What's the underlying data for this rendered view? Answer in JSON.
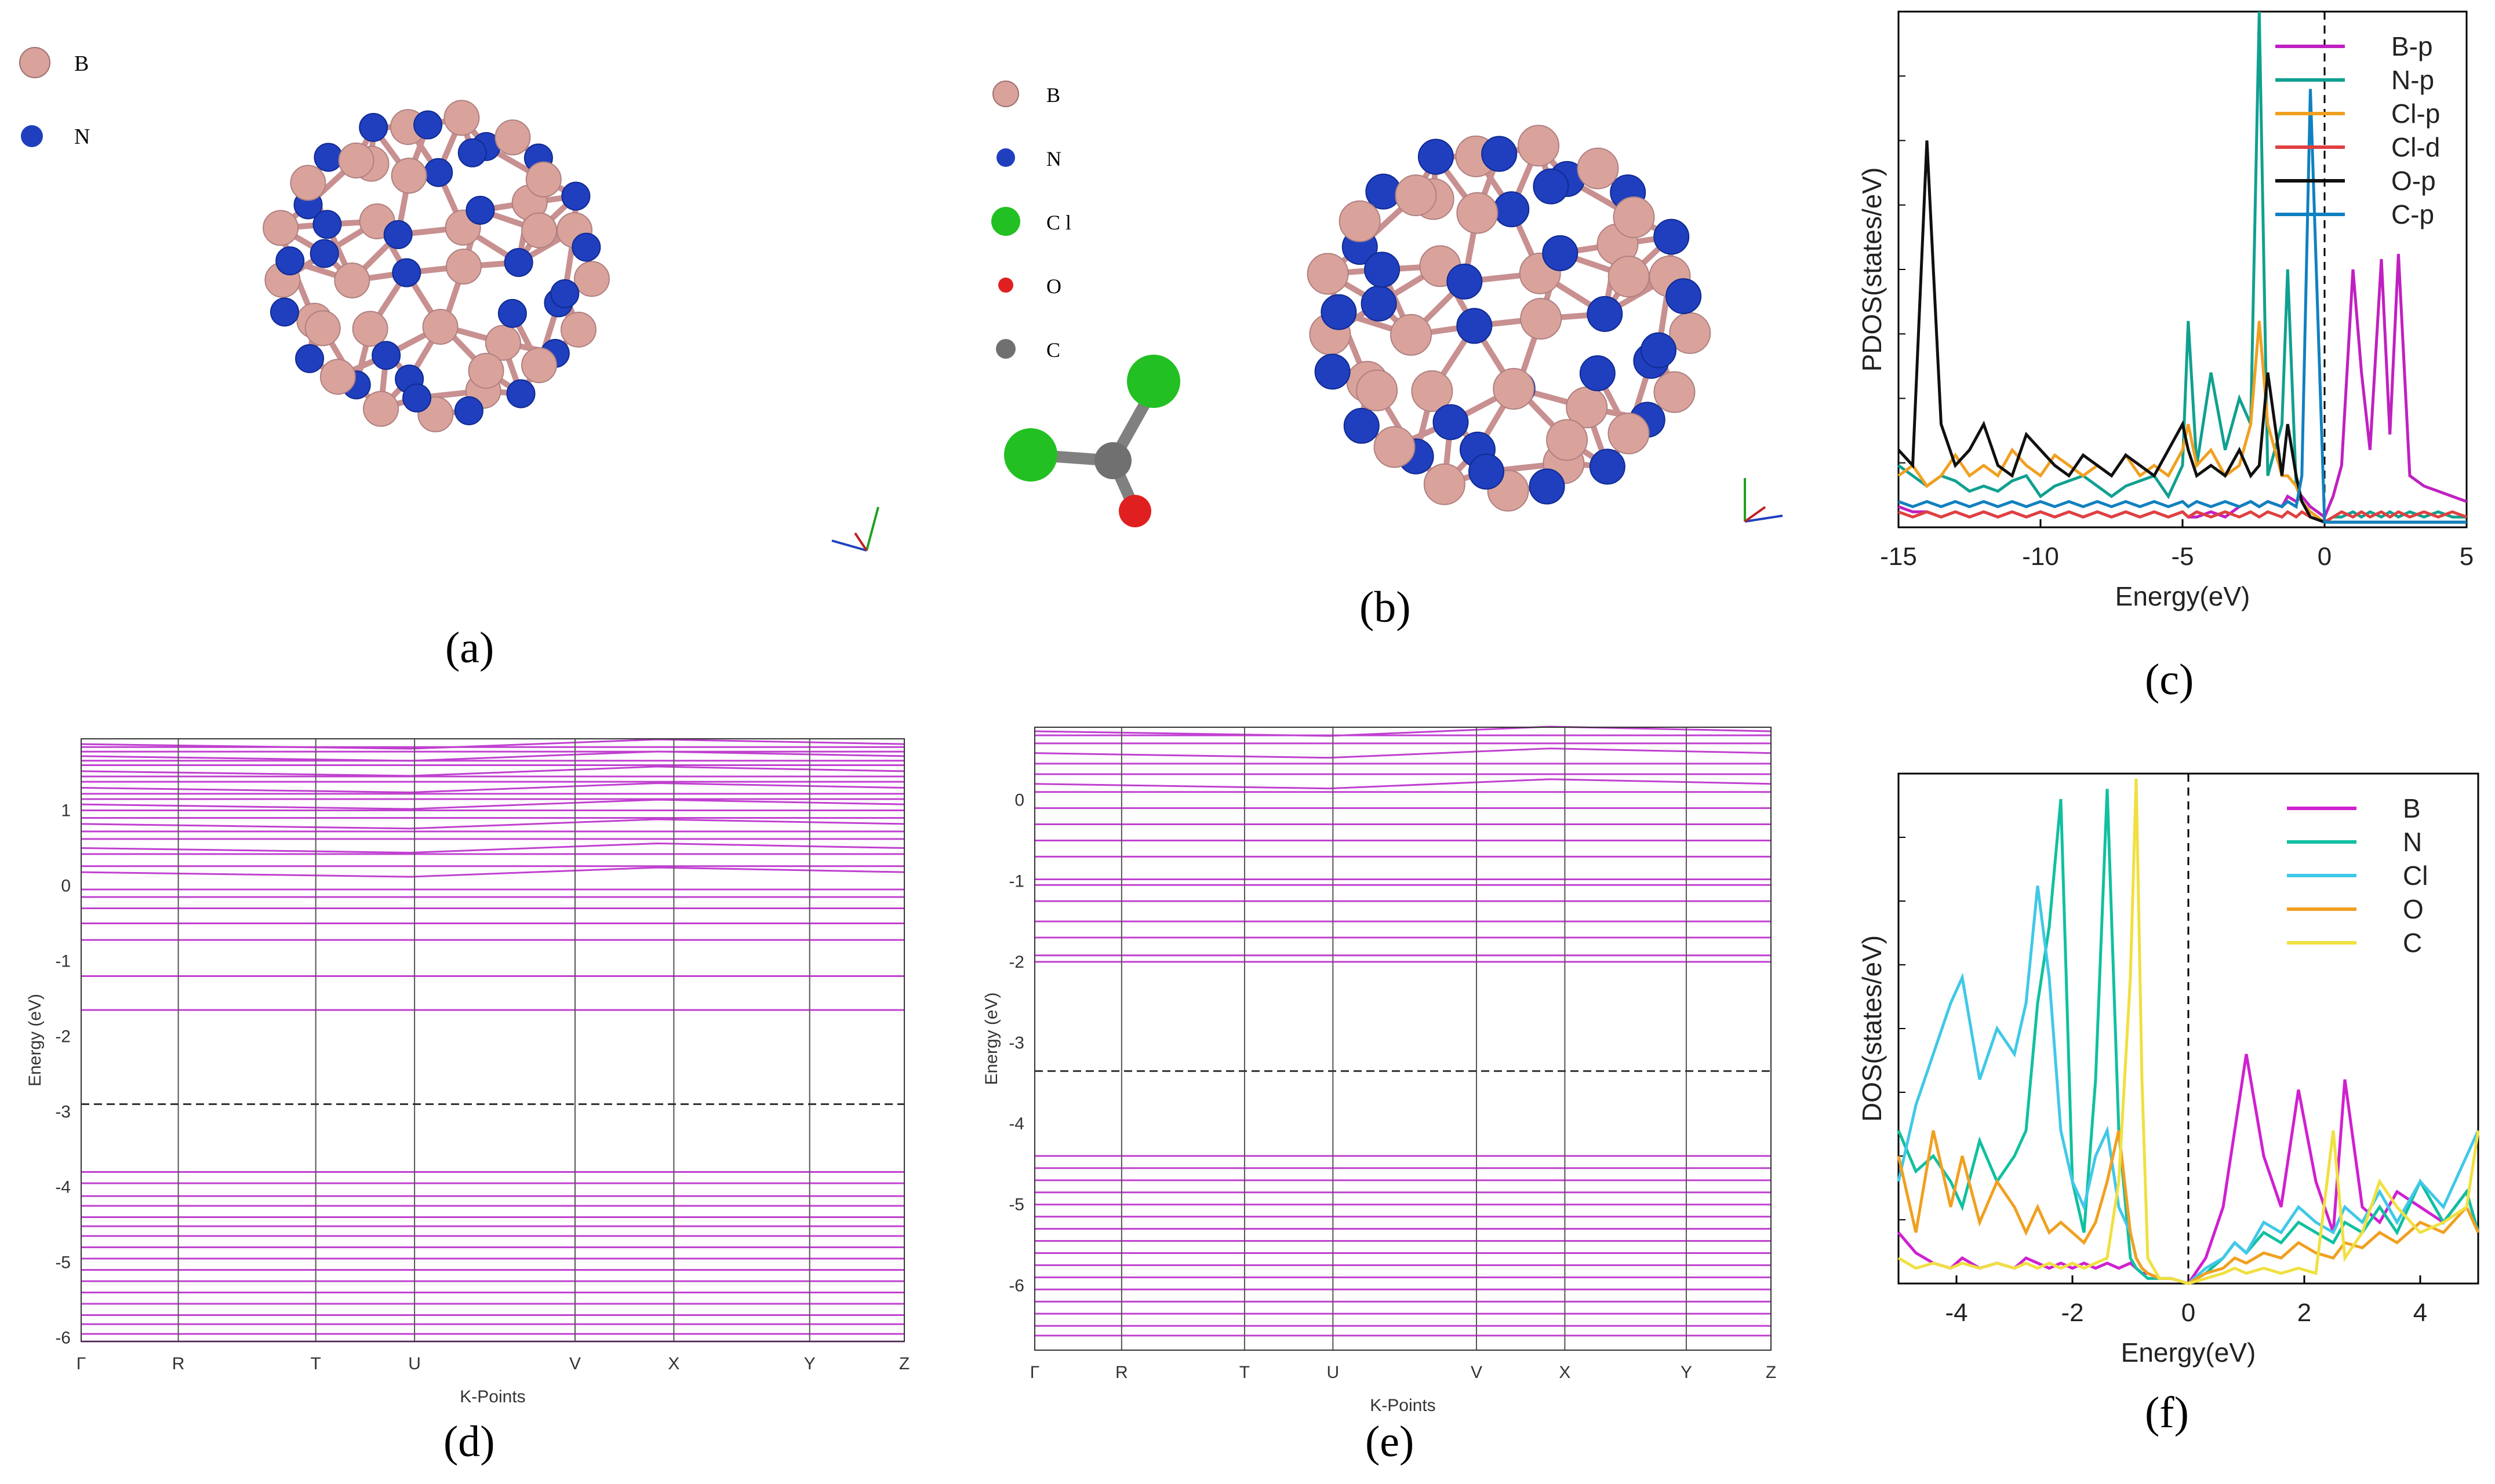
{
  "figure": {
    "captions": {
      "a": "(a)",
      "b": "(b)",
      "c": "(c)",
      "d": "(d)",
      "e": "(e)",
      "f": "(f)"
    }
  },
  "panel_a": {
    "legend": [
      {
        "label": "B",
        "color": "#d9a39c"
      },
      {
        "label": "N",
        "color": "#1f3fbf"
      }
    ]
  },
  "panel_b": {
    "legend": [
      {
        "label": "B",
        "color": "#d9a39c"
      },
      {
        "label": "N",
        "color": "#1f3fbf"
      },
      {
        "label": "C l",
        "color": "#22c022"
      },
      {
        "label": "O",
        "color": "#e02020"
      },
      {
        "label": "C",
        "color": "#707070"
      }
    ]
  },
  "chart_data": [
    {
      "panel": "c",
      "type": "line",
      "xlabel": "Energy(eV)",
      "ylabel": "PDOS(states/eV)",
      "xlim": [
        -15,
        5
      ],
      "ylim": [
        0,
        1
      ],
      "xticks": [
        "-15",
        "-10",
        "-5",
        "0",
        "5"
      ],
      "fermi_line": 0,
      "legend_position": "top-right",
      "x": [
        -15,
        -14.5,
        -14,
        -13.5,
        -13,
        -12.5,
        -12,
        -11.5,
        -11,
        -10.5,
        -10,
        -9.5,
        -9,
        -8.5,
        -8,
        -7.5,
        -7,
        -6.5,
        -6,
        -5.5,
        -5,
        -4.8,
        -4.5,
        -4,
        -3.5,
        -3,
        -2.6,
        -2.3,
        -2,
        -1.5,
        -1.3,
        -1,
        -0.8,
        -0.5,
        0,
        0.3,
        0.6,
        1,
        1.3,
        1.6,
        2,
        2.3,
        2.6,
        3,
        3.5,
        4,
        4.5,
        5
      ],
      "series": [
        {
          "name": "B-p",
          "color": "#c020c0",
          "values": [
            0.04,
            0.03,
            0.03,
            0.02,
            0.03,
            0.02,
            0.03,
            0.02,
            0.03,
            0.02,
            0.03,
            0.02,
            0.03,
            0.02,
            0.03,
            0.02,
            0.03,
            0.02,
            0.03,
            0.02,
            0.03,
            0.02,
            0.02,
            0.03,
            0.02,
            0.04,
            0.05,
            0.04,
            0.05,
            0.04,
            0.06,
            0.05,
            0.06,
            0.04,
            0.02,
            0.06,
            0.12,
            0.5,
            0.3,
            0.15,
            0.52,
            0.18,
            0.53,
            0.1,
            0.08,
            0.07,
            0.06,
            0.05
          ]
        },
        {
          "name": "N-p",
          "color": "#10a090",
          "values": [
            0.12,
            0.1,
            0.08,
            0.1,
            0.09,
            0.07,
            0.08,
            0.07,
            0.09,
            0.1,
            0.06,
            0.08,
            0.09,
            0.1,
            0.08,
            0.06,
            0.08,
            0.09,
            0.1,
            0.06,
            0.12,
            0.4,
            0.12,
            0.3,
            0.15,
            0.25,
            0.2,
            1.0,
            0.1,
            0.2,
            0.5,
            0.08,
            0.05,
            0.03,
            0.01,
            0.02,
            0.02,
            0.03,
            0.02,
            0.03,
            0.02,
            0.03,
            0.02,
            0.03,
            0.02,
            0.03,
            0.02,
            0.02
          ]
        },
        {
          "name": "Cl-p",
          "color": "#f0a020",
          "values": [
            0.1,
            0.12,
            0.08,
            0.1,
            0.14,
            0.1,
            0.12,
            0.1,
            0.15,
            0.12,
            0.1,
            0.14,
            0.12,
            0.1,
            0.12,
            0.1,
            0.14,
            0.1,
            0.12,
            0.1,
            0.15,
            0.2,
            0.12,
            0.15,
            0.1,
            0.12,
            0.2,
            0.4,
            0.2,
            0.1,
            0.1,
            0.08,
            0.05,
            0.03,
            0.01,
            0.01,
            0.01,
            0.01,
            0.01,
            0.01,
            0.01,
            0.01,
            0.01,
            0.01,
            0.01,
            0.01,
            0.01,
            0.01
          ]
        },
        {
          "name": "Cl-d",
          "color": "#e04040",
          "values": [
            0.03,
            0.02,
            0.03,
            0.02,
            0.03,
            0.02,
            0.03,
            0.02,
            0.03,
            0.02,
            0.03,
            0.02,
            0.03,
            0.02,
            0.03,
            0.02,
            0.03,
            0.02,
            0.03,
            0.02,
            0.03,
            0.02,
            0.03,
            0.02,
            0.03,
            0.02,
            0.03,
            0.02,
            0.03,
            0.02,
            0.03,
            0.02,
            0.03,
            0.02,
            0.01,
            0.02,
            0.03,
            0.02,
            0.03,
            0.02,
            0.03,
            0.02,
            0.03,
            0.02,
            0.03,
            0.02,
            0.03,
            0.02
          ]
        },
        {
          "name": "O-p",
          "color": "#101010",
          "values": [
            0.15,
            0.12,
            0.75,
            0.2,
            0.12,
            0.15,
            0.2,
            0.12,
            0.1,
            0.18,
            0.15,
            0.12,
            0.1,
            0.14,
            0.12,
            0.1,
            0.14,
            0.12,
            0.1,
            0.15,
            0.2,
            0.15,
            0.1,
            0.12,
            0.1,
            0.15,
            0.1,
            0.12,
            0.3,
            0.1,
            0.2,
            0.1,
            0.05,
            0.02,
            0.01,
            0.01,
            0.01,
            0.01,
            0.01,
            0.01,
            0.01,
            0.01,
            0.01,
            0.01,
            0.01,
            0.01,
            0.01,
            0.01
          ]
        },
        {
          "name": "C-p",
          "color": "#1080c0",
          "values": [
            0.05,
            0.04,
            0.05,
            0.04,
            0.05,
            0.04,
            0.05,
            0.04,
            0.05,
            0.04,
            0.05,
            0.04,
            0.05,
            0.04,
            0.05,
            0.04,
            0.05,
            0.04,
            0.05,
            0.04,
            0.05,
            0.04,
            0.05,
            0.04,
            0.05,
            0.04,
            0.05,
            0.04,
            0.05,
            0.04,
            0.05,
            0.04,
            0.1,
            0.85,
            0.01,
            0.01,
            0.01,
            0.01,
            0.01,
            0.01,
            0.01,
            0.01,
            0.01,
            0.01,
            0.01,
            0.01,
            0.01,
            0.01
          ]
        }
      ]
    },
    {
      "panel": "f",
      "type": "line",
      "xlabel": "Energy(eV)",
      "ylabel": "DOS(states/eV)",
      "xlim": [
        -5,
        5
      ],
      "ylim": [
        0,
        1
      ],
      "xticks": [
        "-4",
        "-2",
        "0",
        "2",
        "4"
      ],
      "fermi_line": 0,
      "legend_position": "top-right",
      "x": [
        -5,
        -4.7,
        -4.4,
        -4.1,
        -3.9,
        -3.6,
        -3.3,
        -3.0,
        -2.8,
        -2.6,
        -2.4,
        -2.2,
        -2.0,
        -1.8,
        -1.6,
        -1.4,
        -1.2,
        -1.0,
        -0.9,
        -0.8,
        -0.7,
        -0.5,
        -0.3,
        0,
        0.3,
        0.6,
        0.8,
        1.0,
        1.3,
        1.6,
        1.9,
        2.2,
        2.5,
        2.7,
        3.0,
        3.3,
        3.6,
        4.0,
        4.4,
        4.8,
        5
      ],
      "series": [
        {
          "name": "B",
          "color": "#d020d0",
          "values": [
            0.1,
            0.06,
            0.04,
            0.03,
            0.05,
            0.03,
            0.04,
            0.03,
            0.05,
            0.04,
            0.03,
            0.04,
            0.03,
            0.04,
            0.03,
            0.04,
            0.03,
            0.04,
            0.03,
            0.02,
            0.02,
            0.01,
            0.01,
            0.0,
            0.05,
            0.15,
            0.3,
            0.45,
            0.25,
            0.15,
            0.38,
            0.2,
            0.1,
            0.4,
            0.15,
            0.12,
            0.18,
            0.15,
            0.12,
            0.18,
            0.1
          ]
        },
        {
          "name": "N",
          "color": "#10c0a0",
          "values": [
            0.3,
            0.22,
            0.25,
            0.2,
            0.15,
            0.28,
            0.2,
            0.25,
            0.3,
            0.55,
            0.7,
            0.95,
            0.2,
            0.1,
            0.4,
            0.97,
            0.3,
            0.05,
            0.03,
            0.02,
            0.01,
            0.01,
            0.01,
            0.0,
            0.02,
            0.05,
            0.08,
            0.06,
            0.1,
            0.08,
            0.12,
            0.1,
            0.08,
            0.12,
            0.1,
            0.15,
            0.1,
            0.2,
            0.12,
            0.18,
            0.1
          ]
        },
        {
          "name": "Cl",
          "color": "#40c8e8",
          "values": [
            0.2,
            0.35,
            0.45,
            0.55,
            0.6,
            0.4,
            0.5,
            0.45,
            0.55,
            0.78,
            0.6,
            0.3,
            0.2,
            0.15,
            0.25,
            0.3,
            0.15,
            0.1,
            0.05,
            0.03,
            0.02,
            0.01,
            0.01,
            0.0,
            0.03,
            0.05,
            0.08,
            0.06,
            0.12,
            0.1,
            0.15,
            0.12,
            0.1,
            0.15,
            0.12,
            0.18,
            0.12,
            0.2,
            0.15,
            0.25,
            0.3
          ]
        },
        {
          "name": "O",
          "color": "#f0a020",
          "values": [
            0.25,
            0.1,
            0.3,
            0.15,
            0.25,
            0.12,
            0.2,
            0.15,
            0.1,
            0.15,
            0.1,
            0.12,
            0.1,
            0.08,
            0.12,
            0.2,
            0.3,
            0.1,
            0.05,
            0.03,
            0.02,
            0.01,
            0.01,
            0.0,
            0.02,
            0.03,
            0.05,
            0.04,
            0.06,
            0.05,
            0.08,
            0.06,
            0.05,
            0.08,
            0.07,
            0.1,
            0.08,
            0.12,
            0.1,
            0.15,
            0.1
          ]
        },
        {
          "name": "C",
          "color": "#f0e040",
          "values": [
            0.05,
            0.03,
            0.04,
            0.03,
            0.04,
            0.03,
            0.04,
            0.03,
            0.04,
            0.03,
            0.04,
            0.03,
            0.04,
            0.03,
            0.04,
            0.05,
            0.2,
            0.6,
            0.99,
            0.4,
            0.05,
            0.01,
            0.01,
            0.0,
            0.01,
            0.02,
            0.03,
            0.02,
            0.03,
            0.02,
            0.03,
            0.02,
            0.3,
            0.05,
            0.1,
            0.2,
            0.15,
            0.1,
            0.12,
            0.15,
            0.3
          ]
        }
      ]
    },
    {
      "panel": "d",
      "type": "line",
      "xlabel": "K-Points",
      "ylabel": "Energy (eV)",
      "xticks": [
        "Γ",
        "R",
        "T",
        "U",
        "V",
        "X",
        "Y",
        "Z"
      ],
      "ylim": [
        -6.05,
        1.95
      ],
      "yticks": [
        "1",
        "0",
        "-1",
        "-2",
        "-3",
        "-4",
        "-5",
        "-6"
      ],
      "fermi_level": -2.9,
      "band_color": "#c040d0",
      "bands": [
        1.88,
        1.84,
        1.78,
        1.72,
        1.66,
        1.6,
        1.52,
        1.45,
        1.38,
        1.3,
        1.22,
        1.15,
        1.08,
        1.0,
        0.9,
        0.82,
        0.72,
        0.62,
        0.5,
        0.42,
        0.26,
        0.18,
        -0.05,
        -0.15,
        -0.3,
        -0.5,
        -0.72,
        -1.2,
        -1.65,
        -3.8,
        -3.95,
        -4.12,
        -4.25,
        -4.4,
        -4.52,
        -4.65,
        -4.8,
        -4.95,
        -5.1,
        -5.25,
        -5.4,
        -5.55,
        -5.7,
        -5.82,
        -5.95,
        -6.05
      ]
    },
    {
      "panel": "e",
      "type": "line",
      "xlabel": "K-Points",
      "ylabel": "Energy (eV)",
      "xticks": [
        "Γ",
        "R",
        "T",
        "U",
        "V",
        "X",
        "Y",
        "Z"
      ],
      "ylim": [
        -6.8,
        0.9
      ],
      "yticks": [
        "0",
        "-1",
        "-2",
        "-3",
        "-4",
        "-5",
        "-6"
      ],
      "fermi_level": -3.35,
      "band_color": "#c040d0",
      "bands": [
        0.85,
        0.8,
        0.7,
        0.58,
        0.45,
        0.32,
        0.2,
        0.1,
        -0.1,
        -0.3,
        -0.5,
        -0.7,
        -0.98,
        -1.05,
        -1.25,
        -1.5,
        -1.7,
        -1.92,
        -2.0,
        -4.4,
        -4.55,
        -4.7,
        -4.85,
        -5.0,
        -5.15,
        -5.3,
        -5.45,
        -5.6,
        -5.75,
        -5.9,
        -6.05,
        -6.2,
        -6.35,
        -6.5,
        -6.62
      ]
    }
  ]
}
